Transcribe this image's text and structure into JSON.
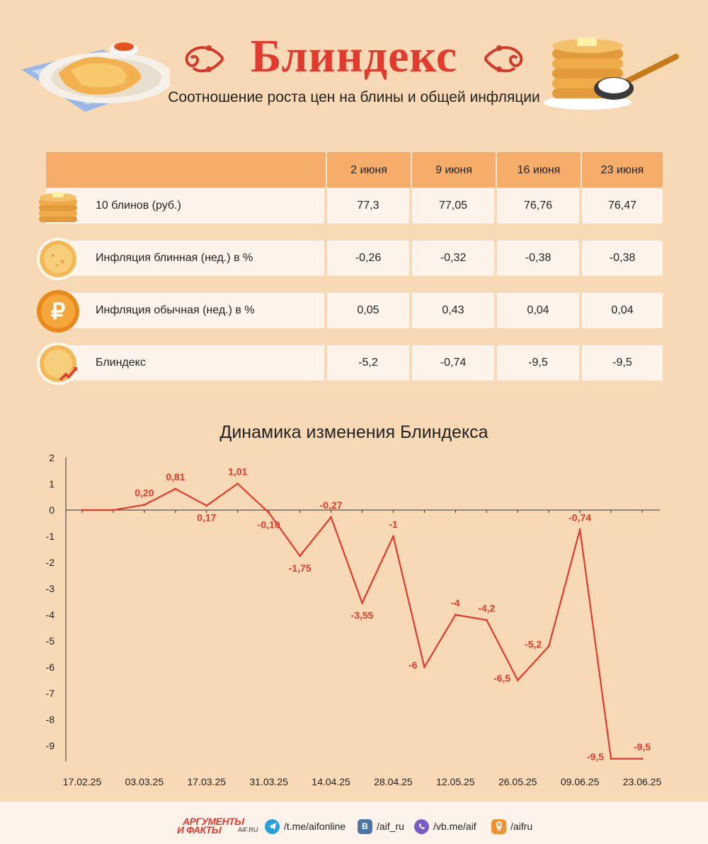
{
  "header": {
    "title": "Блиндекс",
    "subtitle": "Соотношение роста цен на блины и общей инфляции"
  },
  "table": {
    "columns": [
      "",
      "2 июня",
      "9 июня",
      "16 июня",
      "23 июня"
    ],
    "rows": [
      {
        "label": "10 блинов (руб.)",
        "icon": "pancake-stack-icon",
        "values": [
          "77,3",
          "77,05",
          "76,76",
          "76,47"
        ]
      },
      {
        "label": "Инфляция блинная (нед.) в %",
        "icon": "pancake-icon",
        "values": [
          "-0,26",
          "-0,32",
          "-0,38",
          "-0,38"
        ]
      },
      {
        "label": "Инфляция обычная (нед.) в %",
        "icon": "ruble-coin-icon",
        "values": [
          "0,05",
          "0,43",
          "0,04",
          "0,04"
        ]
      },
      {
        "label": "Блиндекс",
        "icon": "pancake-growth-icon",
        "values": [
          "-5,2",
          "-0,74",
          "-9,5",
          "-9,5"
        ]
      }
    ]
  },
  "chart_data": {
    "type": "line",
    "title": "Динамика изменения Блиндекса",
    "x_tick_labels": [
      "17.02.25",
      "03.03.25",
      "17.03.25",
      "31.03.25",
      "14.04.25",
      "28.04.25",
      "12.05.25",
      "26.05.25",
      "09.06.25",
      "23.06.25"
    ],
    "x": [
      "17.02.25",
      "24.02.25",
      "03.03.25",
      "10.03.25",
      "17.03.25",
      "24.03.25",
      "31.03.25",
      "07.04.25",
      "14.04.25",
      "21.04.25",
      "28.04.25",
      "05.05.25",
      "12.05.25",
      "19.05.25",
      "26.05.25",
      "02.06.25",
      "09.06.25",
      "16.06.25",
      "23.06.25"
    ],
    "values": [
      0,
      0,
      0.2,
      0.81,
      0.17,
      1.01,
      -0.1,
      -1.75,
      -0.27,
      -3.55,
      -1,
      -6,
      -4,
      -4.2,
      -6.5,
      -5.2,
      -0.74,
      -9.5,
      -9.5
    ],
    "data_labels": [
      "",
      "",
      "0,20",
      "0,81",
      "0,17",
      "1,01",
      "-0,10",
      "-1,75",
      "-0,27",
      "-3,55",
      "-1",
      "-6",
      "-4",
      "-4,2",
      "-6,5",
      "-5,2",
      "-0,74",
      "-9,5",
      "-9,5"
    ],
    "label_position": [
      "",
      "",
      "above",
      "above",
      "below",
      "above",
      "below",
      "below",
      "above",
      "below",
      "above",
      "left",
      "above",
      "above",
      "left",
      "left",
      "above",
      "left",
      "above"
    ],
    "y_ticks": [
      "2",
      "1",
      "0",
      "-1",
      "-2",
      "-3",
      "-4",
      "-5",
      "-6",
      "-7",
      "-8",
      "-9"
    ],
    "ylim": [
      -9.5,
      2
    ],
    "grid": false,
    "line_color": "#e23a2e"
  },
  "footer": {
    "logo_line1": "АРГУМЕНТЫ",
    "logo_line2": "И ФАКТЫ",
    "logo_site": "AIF.RU",
    "links": [
      {
        "icon": "telegram-icon",
        "text": "/t.me/aifonline",
        "color": "#2aa0d8"
      },
      {
        "icon": "vk-icon",
        "text": "/aif_ru",
        "color": "#4c75a3"
      },
      {
        "icon": "viber-icon",
        "text": "/vb.me/aif",
        "color": "#7d5ac4"
      },
      {
        "icon": "odnoklassniki-icon",
        "text": "/aifru",
        "color": "#f09035"
      }
    ]
  }
}
